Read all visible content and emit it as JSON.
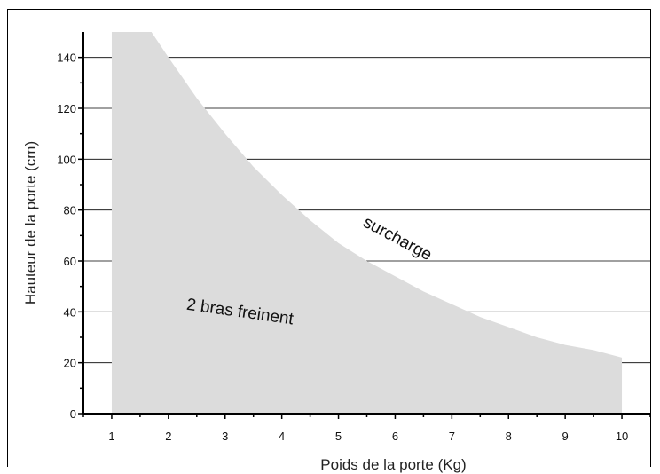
{
  "chart_data": {
    "type": "area",
    "title": "",
    "xlabel": "Poids de la porte (Kg)",
    "ylabel": "Hauteur de la porte (cm)",
    "xlim": [
      0.5,
      10.5
    ],
    "ylim": [
      0,
      150
    ],
    "xticks": [
      1,
      2,
      3,
      4,
      5,
      6,
      7,
      8,
      9,
      10
    ],
    "yticks": [
      0,
      20,
      40,
      60,
      80,
      100,
      120,
      140
    ],
    "grid": "horizontal",
    "fill_color": "#dcdcdc",
    "region_x": [
      1,
      1.7,
      2,
      2.5,
      3,
      3.5,
      4,
      4.5,
      5,
      5.5,
      6,
      6.5,
      7,
      7.5,
      8,
      8.5,
      9,
      9.5,
      10
    ],
    "region_y": [
      150,
      150,
      140,
      124,
      110,
      97,
      86,
      76,
      67,
      60,
      54,
      48,
      43,
      38,
      34,
      30,
      27,
      25,
      22
    ],
    "annotations": [
      {
        "text": "surcharge",
        "x": 6.0,
        "y": 67,
        "rotation": 28
      },
      {
        "text": "2 bras freinent",
        "x": 3.25,
        "y": 38,
        "rotation": 8
      }
    ]
  }
}
